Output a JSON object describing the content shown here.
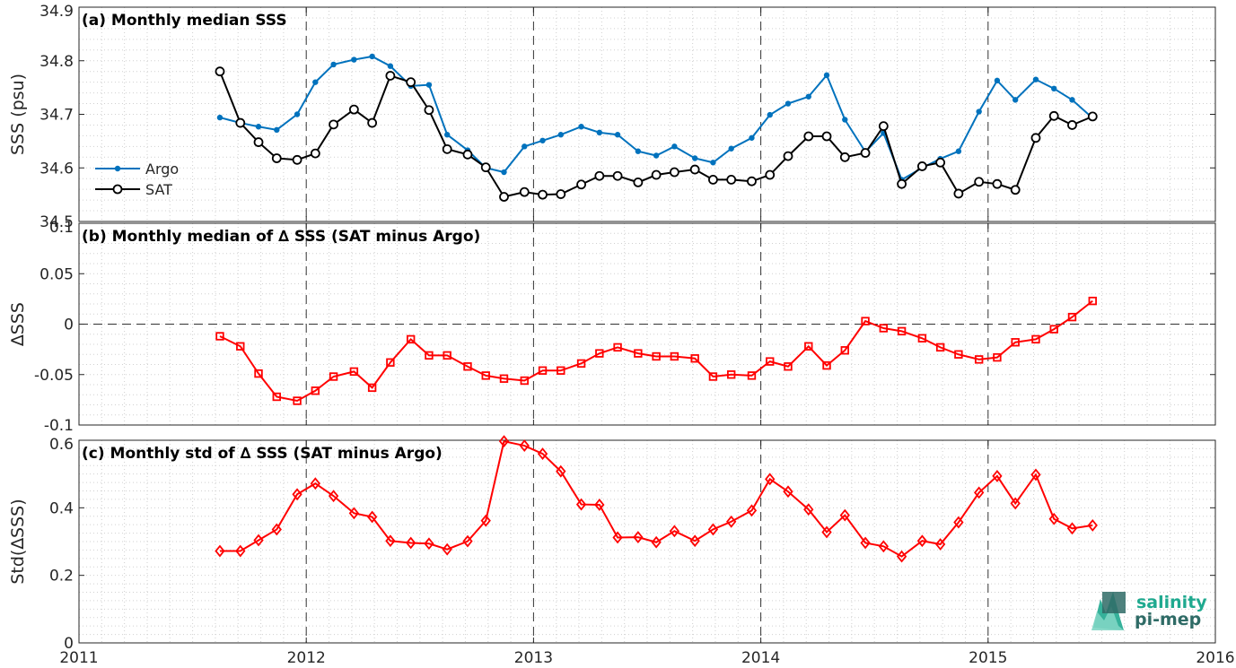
{
  "colors": {
    "argo": "#0072bd",
    "sat": "#000000",
    "delta": "#ff0000",
    "logo_teal": "#1fa98f",
    "logo_dark": "#2f6b66"
  },
  "logo": {
    "line1": "salinity",
    "line2": "pi-mep"
  },
  "chart_data": [
    {
      "type": "line",
      "title": "(a) Monthly median SSS",
      "xlabel": "",
      "ylabel": "SSS (psu)",
      "xlim": [
        2011,
        2016
      ],
      "ylim": [
        34.5,
        34.9
      ],
      "xticks": [
        "2011",
        "2012",
        "2013",
        "2014",
        "2015",
        "2016"
      ],
      "yticks": [
        "34.5",
        "34.6",
        "34.7",
        "34.8",
        "34.9"
      ],
      "grid": true,
      "legend": "left",
      "x": [
        2011.62,
        2011.71,
        2011.79,
        2011.87,
        2011.96,
        2012.04,
        2012.12,
        2012.21,
        2012.29,
        2012.37,
        2012.46,
        2012.54,
        2012.62,
        2012.71,
        2012.79,
        2012.87,
        2012.96,
        2013.04,
        2013.12,
        2013.21,
        2013.29,
        2013.37,
        2013.46,
        2013.54,
        2013.62,
        2013.71,
        2013.79,
        2013.87,
        2013.96,
        2014.04,
        2014.12,
        2014.21,
        2014.29,
        2014.37,
        2014.46,
        2014.54,
        2014.62,
        2014.71,
        2014.79,
        2014.87,
        2014.96,
        2015.04,
        2015.12,
        2015.21,
        2015.29,
        2015.37,
        2015.46
      ],
      "series": [
        {
          "name": "Argo",
          "values": [
            34.694,
            34.684,
            34.677,
            34.671,
            34.7,
            34.76,
            34.793,
            34.802,
            34.808,
            34.79,
            34.753,
            34.755,
            34.662,
            34.633,
            34.6,
            34.592,
            34.64,
            34.651,
            34.662,
            34.677,
            34.666,
            34.662,
            34.631,
            34.623,
            34.64,
            34.618,
            34.61,
            34.636,
            34.656,
            34.699,
            34.72,
            34.733,
            34.773,
            34.69,
            34.63,
            34.665,
            34.578,
            34.6,
            34.617,
            34.631,
            34.705,
            34.763,
            34.727,
            34.765,
            34.748,
            34.727,
            34.693
          ]
        },
        {
          "name": "SAT",
          "values": [
            34.78,
            34.684,
            34.648,
            34.618,
            34.615,
            34.627,
            34.681,
            34.709,
            34.684,
            34.772,
            34.76,
            34.708,
            34.635,
            34.625,
            34.601,
            34.546,
            34.555,
            34.55,
            34.551,
            34.569,
            34.585,
            34.585,
            34.573,
            34.587,
            34.592,
            34.597,
            34.578,
            34.578,
            34.575,
            34.587,
            34.622,
            34.659,
            34.659,
            34.62,
            34.628,
            34.678,
            34.57,
            34.603,
            34.61,
            34.552,
            34.574,
            34.57,
            34.559,
            34.656,
            34.697,
            34.68,
            34.696
          ]
        }
      ]
    },
    {
      "type": "line",
      "title": "(b) Monthly median of ∆ SSS (SAT minus Argo)",
      "xlabel": "",
      "ylabel": "∆SSS",
      "xlim": [
        2011,
        2016
      ],
      "ylim": [
        -0.1,
        0.1
      ],
      "xticks": [
        "2011",
        "2012",
        "2013",
        "2014",
        "2015",
        "2016"
      ],
      "yticks": [
        "-0.1",
        "-0.05",
        "0",
        "0.05",
        "0.1"
      ],
      "grid": true,
      "zero_line": true,
      "x": [
        2011.62,
        2011.71,
        2011.79,
        2011.87,
        2011.96,
        2012.04,
        2012.12,
        2012.21,
        2012.29,
        2012.37,
        2012.46,
        2012.54,
        2012.62,
        2012.71,
        2012.79,
        2012.87,
        2012.96,
        2013.04,
        2013.12,
        2013.21,
        2013.29,
        2013.37,
        2013.46,
        2013.54,
        2013.62,
        2013.71,
        2013.79,
        2013.87,
        2013.96,
        2014.04,
        2014.12,
        2014.21,
        2014.29,
        2014.37,
        2014.46,
        2014.54,
        2014.62,
        2014.71,
        2014.79,
        2014.87,
        2014.96,
        2015.04,
        2015.12,
        2015.21,
        2015.29,
        2015.37,
        2015.46
      ],
      "series": [
        {
          "values": [
            -0.012,
            -0.022,
            -0.049,
            -0.072,
            -0.076,
            -0.066,
            -0.052,
            -0.047,
            -0.063,
            -0.038,
            -0.015,
            -0.031,
            -0.031,
            -0.042,
            -0.051,
            -0.054,
            -0.056,
            -0.046,
            -0.046,
            -0.039,
            -0.029,
            -0.023,
            -0.029,
            -0.032,
            -0.032,
            -0.034,
            -0.052,
            -0.05,
            -0.051,
            -0.037,
            -0.042,
            -0.022,
            -0.041,
            -0.026,
            0.003,
            -0.004,
            -0.007,
            -0.014,
            -0.023,
            -0.03,
            -0.035,
            -0.033,
            -0.018,
            -0.015,
            -0.005,
            0.007,
            0.023
          ]
        }
      ]
    },
    {
      "type": "line",
      "title": "(c) Monthly std of ∆ SSS (SAT minus Argo)",
      "xlabel": "",
      "ylabel": "Std(∆SSS)",
      "xlim": [
        2011,
        2016
      ],
      "ylim": [
        0,
        0.6
      ],
      "xticks": [
        "2011",
        "2012",
        "2013",
        "2014",
        "2015",
        "2016"
      ],
      "yticks": [
        "0",
        "0.2",
        "0.4",
        "0.6"
      ],
      "grid": true,
      "x": [
        2011.62,
        2011.71,
        2011.79,
        2011.87,
        2011.96,
        2012.04,
        2012.12,
        2012.21,
        2012.29,
        2012.37,
        2012.46,
        2012.54,
        2012.62,
        2012.71,
        2012.79,
        2012.87,
        2012.96,
        2013.04,
        2013.12,
        2013.21,
        2013.29,
        2013.37,
        2013.46,
        2013.54,
        2013.62,
        2013.71,
        2013.79,
        2013.87,
        2013.96,
        2014.04,
        2014.12,
        2014.21,
        2014.29,
        2014.37,
        2014.46,
        2014.54,
        2014.62,
        2014.71,
        2014.79,
        2014.87,
        2014.96,
        2015.04,
        2015.12,
        2015.21,
        2015.29,
        2015.37,
        2015.46
      ],
      "series": [
        {
          "values": [
            0.272,
            0.272,
            0.304,
            0.336,
            0.44,
            0.472,
            0.435,
            0.384,
            0.373,
            0.302,
            0.296,
            0.294,
            0.277,
            0.301,
            0.362,
            0.597,
            0.584,
            0.56,
            0.508,
            0.41,
            0.409,
            0.312,
            0.313,
            0.298,
            0.331,
            0.302,
            0.336,
            0.359,
            0.392,
            0.485,
            0.448,
            0.395,
            0.328,
            0.378,
            0.296,
            0.286,
            0.256,
            0.302,
            0.292,
            0.357,
            0.445,
            0.494,
            0.413,
            0.498,
            0.367,
            0.339,
            0.348
          ]
        }
      ]
    }
  ]
}
